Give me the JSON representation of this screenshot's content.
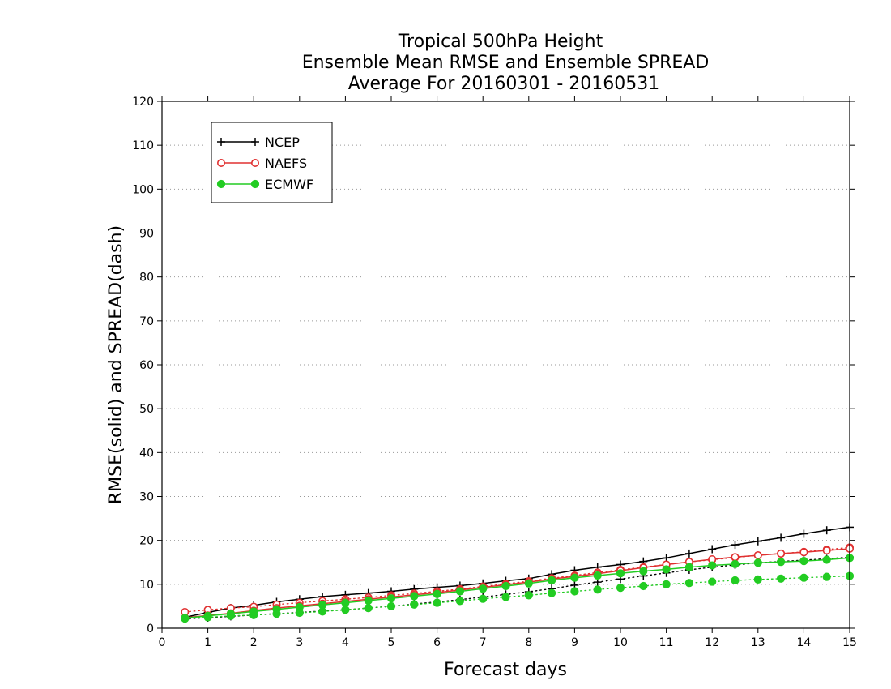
{
  "chart_data": {
    "type": "line",
    "title_lines": [
      "Tropical 500hPa Height",
      "Ensemble Mean RMSE and Ensemble SPREAD",
      "Average For 20160301 - 20160531"
    ],
    "xlabel": "Forecast days",
    "ylabel": "RMSE(solid) and SPREAD(dash)",
    "xlim": [
      0,
      15
    ],
    "ylim": [
      0,
      120
    ],
    "xticks": [
      "0",
      "1",
      "2",
      "3",
      "4",
      "5",
      "6",
      "7",
      "8",
      "9",
      "10",
      "11",
      "12",
      "13",
      "14",
      "15"
    ],
    "yticks": [
      "0",
      "10",
      "20",
      "30",
      "40",
      "50",
      "60",
      "70",
      "80",
      "90",
      "100",
      "110",
      "120"
    ],
    "grid": true,
    "legend_position": "top-left",
    "x": [
      0.5,
      1,
      1.5,
      2,
      2.5,
      3,
      3.5,
      4,
      4.5,
      5,
      5.5,
      6,
      6.5,
      7,
      7.5,
      8,
      8.5,
      9,
      9.5,
      10,
      10.5,
      11,
      11.5,
      12,
      12.5,
      13,
      13.5,
      14,
      14.5,
      15
    ],
    "series": [
      {
        "name": "NCEP",
        "color": "#000000",
        "marker": "plus",
        "rmse": [
          2.5,
          3.6,
          4.6,
          5.2,
          6.0,
          6.6,
          7.2,
          7.6,
          8.0,
          8.4,
          8.9,
          9.3,
          9.7,
          10.2,
          10.8,
          11.3,
          12.3,
          13.2,
          13.9,
          14.5,
          15.2,
          16.0,
          17.0,
          18.0,
          19.0,
          19.8,
          20.6,
          21.5,
          22.3,
          23.0
        ],
        "spread": [
          2.1,
          2.4,
          2.7,
          3.0,
          3.3,
          3.6,
          3.9,
          4.2,
          4.6,
          5.0,
          5.5,
          6.0,
          6.5,
          7.1,
          7.7,
          8.3,
          9.0,
          9.8,
          10.5,
          11.2,
          11.9,
          12.6,
          13.3,
          13.9,
          14.4,
          14.9,
          15.2,
          15.5,
          15.8,
          16.2
        ]
      },
      {
        "name": "NAEFS",
        "color": "#e03030",
        "marker": "open-circle",
        "rmse": [
          2.4,
          2.9,
          3.4,
          4.0,
          4.6,
          5.1,
          5.6,
          6.1,
          6.6,
          7.1,
          7.6,
          8.1,
          8.7,
          9.3,
          9.9,
          10.5,
          11.2,
          11.8,
          12.4,
          13.1,
          13.8,
          14.5,
          15.1,
          15.7,
          16.2,
          16.6,
          17.0,
          17.3,
          17.7,
          18.1
        ],
        "spread": [
          3.7,
          4.2,
          4.6,
          4.9,
          5.4,
          5.8,
          6.2,
          6.6,
          7.0,
          7.5,
          7.9,
          8.4,
          8.9,
          9.5,
          10.1,
          10.7,
          11.4,
          12.0,
          12.7,
          13.3,
          13.9,
          14.5,
          15.1,
          15.6,
          16.1,
          16.6,
          17.0,
          17.4,
          17.9,
          18.4
        ]
      },
      {
        "name": "ECMWF",
        "color": "#22cc22",
        "marker": "filled-circle",
        "rmse": [
          2.3,
          2.8,
          3.3,
          3.8,
          4.3,
          4.8,
          5.3,
          5.8,
          6.3,
          6.8,
          7.3,
          7.8,
          8.4,
          9.0,
          9.6,
          10.2,
          10.9,
          11.5,
          12.0,
          12.5,
          13.0,
          13.4,
          13.9,
          14.3,
          14.6,
          14.9,
          15.1,
          15.3,
          15.6,
          16.0
        ],
        "spread": [
          2.2,
          2.5,
          2.8,
          3.0,
          3.3,
          3.5,
          3.8,
          4.2,
          4.6,
          5.0,
          5.4,
          5.8,
          6.2,
          6.7,
          7.1,
          7.5,
          8.0,
          8.4,
          8.8,
          9.2,
          9.6,
          10.0,
          10.3,
          10.6,
          10.9,
          11.1,
          11.3,
          11.5,
          11.7,
          11.9
        ]
      }
    ]
  }
}
